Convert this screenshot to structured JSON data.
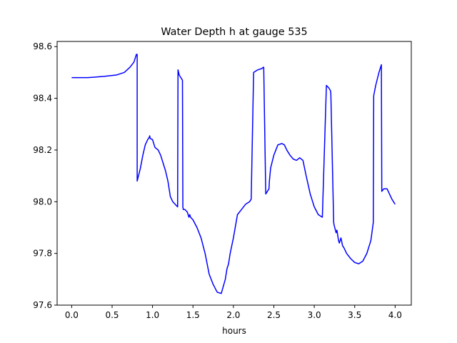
{
  "chart_data": {
    "type": "line",
    "title": "Water Depth h at gauge 535",
    "xlabel": "hours",
    "ylabel": "",
    "xlim": [
      -0.18,
      4.2
    ],
    "ylim": [
      97.6,
      98.62
    ],
    "xticks": [
      0.0,
      0.5,
      1.0,
      1.5,
      2.0,
      2.5,
      3.0,
      3.5,
      4.0
    ],
    "xtick_labels": [
      "0.0",
      "0.5",
      "1.0",
      "1.5",
      "2.0",
      "2.5",
      "3.0",
      "3.5",
      "4.0"
    ],
    "yticks": [
      97.6,
      97.8,
      98.0,
      98.2,
      98.4,
      98.6
    ],
    "ytick_labels": [
      "97.6",
      "97.8",
      "98.0",
      "98.2",
      "98.4",
      "98.6"
    ],
    "grid": false,
    "series": [
      {
        "color": "#0000ff",
        "x": [
          0.0,
          0.2,
          0.4,
          0.55,
          0.65,
          0.72,
          0.77,
          0.8,
          0.81,
          0.81,
          0.85,
          0.88,
          0.91,
          0.94,
          0.96,
          0.965,
          0.97,
          1.0,
          1.03,
          1.07,
          1.1,
          1.13,
          1.16,
          1.19,
          1.22,
          1.25,
          1.28,
          1.31,
          1.315,
          1.33,
          1.35,
          1.37,
          1.375,
          1.38,
          1.4,
          1.43,
          1.45,
          1.46,
          1.47,
          1.5,
          1.55,
          1.6,
          1.65,
          1.7,
          1.75,
          1.8,
          1.85,
          1.9,
          1.92,
          1.94,
          1.96,
          2.0,
          2.05,
          2.1,
          2.15,
          2.2,
          2.22,
          2.25,
          2.3,
          2.35,
          2.37,
          2.375,
          2.4,
          2.44,
          2.445,
          2.46,
          2.5,
          2.55,
          2.6,
          2.63,
          2.66,
          2.7,
          2.74,
          2.78,
          2.82,
          2.86,
          2.9,
          2.95,
          3.0,
          3.05,
          3.1,
          3.15,
          3.18,
          3.2,
          3.205,
          3.24,
          3.245,
          3.27,
          3.28,
          3.3,
          3.31,
          3.33,
          3.35,
          3.37,
          3.4,
          3.45,
          3.5,
          3.55,
          3.6,
          3.65,
          3.7,
          3.73,
          3.735,
          3.76,
          3.8,
          3.83,
          3.835,
          3.86,
          3.9,
          3.93,
          3.96,
          4.0
        ],
        "y": [
          98.48,
          98.48,
          98.485,
          98.49,
          98.5,
          98.52,
          98.54,
          98.57,
          98.57,
          98.08,
          98.13,
          98.18,
          98.22,
          98.24,
          98.25,
          98.255,
          98.245,
          98.24,
          98.21,
          98.2,
          98.18,
          98.15,
          98.12,
          98.08,
          98.02,
          98.0,
          97.99,
          97.98,
          98.51,
          98.49,
          98.48,
          98.47,
          97.98,
          97.97,
          97.97,
          97.96,
          97.94,
          97.95,
          97.94,
          97.93,
          97.9,
          97.86,
          97.8,
          97.72,
          97.68,
          97.65,
          97.645,
          97.7,
          97.74,
          97.76,
          97.8,
          97.86,
          97.95,
          97.97,
          97.99,
          98.0,
          98.01,
          98.5,
          98.51,
          98.515,
          98.52,
          98.52,
          98.03,
          98.05,
          98.08,
          98.13,
          98.18,
          98.22,
          98.225,
          98.22,
          98.2,
          98.18,
          98.165,
          98.16,
          98.17,
          98.16,
          98.1,
          98.03,
          97.98,
          97.95,
          97.94,
          98.45,
          98.44,
          98.43,
          98.42,
          97.92,
          97.91,
          97.88,
          97.89,
          97.85,
          97.84,
          97.86,
          97.83,
          97.82,
          97.8,
          97.78,
          97.765,
          97.76,
          97.77,
          97.8,
          97.85,
          97.92,
          98.41,
          98.45,
          98.5,
          98.53,
          98.04,
          98.05,
          98.05,
          98.03,
          98.01,
          97.99
        ]
      }
    ]
  }
}
